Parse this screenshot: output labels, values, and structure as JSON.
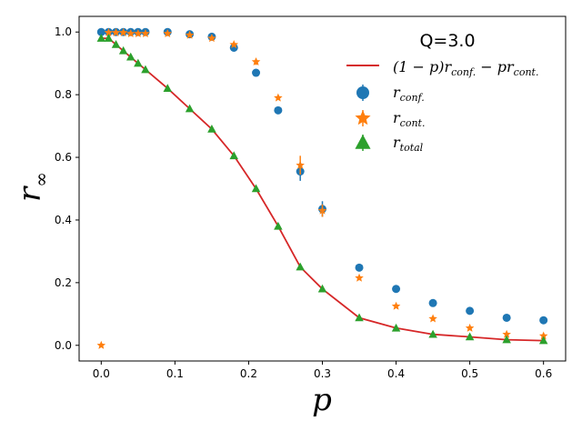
{
  "chart_data": {
    "type": "scatter",
    "title": "Q=3.0",
    "xlabel": "p",
    "ylabel": "r",
    "ylabel_sub": "∞",
    "xlim": [
      -0.03,
      0.63
    ],
    "ylim": [
      -0.05,
      1.05
    ],
    "xticks": [
      0.0,
      0.1,
      0.2,
      0.3,
      0.4,
      0.5,
      0.6
    ],
    "yticks": [
      0.0,
      0.2,
      0.4,
      0.6,
      0.8,
      1.0
    ],
    "xtick_labels": [
      "0.0",
      "0.1",
      "0.2",
      "0.3",
      "0.4",
      "0.5",
      "0.6"
    ],
    "ytick_labels": [
      "0.0",
      "0.2",
      "0.4",
      "0.6",
      "0.8",
      "1.0"
    ],
    "legend_placement": "top-right",
    "series": [
      {
        "name": "r_conf.",
        "legend_main": "r",
        "legend_sub": "conf.",
        "marker": "circle",
        "color": "#1f77b4",
        "x": [
          0.0,
          0.01,
          0.02,
          0.03,
          0.04,
          0.05,
          0.06,
          0.09,
          0.12,
          0.15,
          0.18,
          0.21,
          0.24,
          0.27,
          0.3,
          0.35,
          0.4,
          0.45,
          0.5,
          0.55,
          0.6
        ],
        "y": [
          1.0,
          1.0,
          1.0,
          1.0,
          1.0,
          1.0,
          1.0,
          1.0,
          0.993,
          0.985,
          0.95,
          0.87,
          0.75,
          0.555,
          0.435,
          0.248,
          0.18,
          0.135,
          0.11,
          0.088,
          0.08
        ]
      },
      {
        "name": "r_cont.",
        "legend_main": "r",
        "legend_sub": "cont.",
        "marker": "star",
        "color": "#ff7f0e",
        "x": [
          0.0,
          0.01,
          0.02,
          0.03,
          0.04,
          0.05,
          0.06,
          0.09,
          0.12,
          0.15,
          0.18,
          0.21,
          0.24,
          0.27,
          0.3,
          0.35,
          0.4,
          0.45,
          0.5,
          0.55,
          0.6
        ],
        "y": [
          0.0,
          0.998,
          0.998,
          0.998,
          0.995,
          0.995,
          0.995,
          0.995,
          0.99,
          0.98,
          0.96,
          0.905,
          0.79,
          0.575,
          0.43,
          0.215,
          0.125,
          0.085,
          0.055,
          0.035,
          0.03
        ]
      },
      {
        "name": "r_total",
        "legend_main": "r",
        "legend_sub": "total",
        "marker": "triangle",
        "color": "#2ca02c",
        "x": [
          0.0,
          0.01,
          0.02,
          0.03,
          0.04,
          0.05,
          0.06,
          0.09,
          0.12,
          0.15,
          0.18,
          0.21,
          0.24,
          0.27,
          0.3,
          0.35,
          0.4,
          0.45,
          0.5,
          0.55,
          0.6
        ],
        "y": [
          0.98,
          0.98,
          0.96,
          0.94,
          0.92,
          0.9,
          0.88,
          0.82,
          0.755,
          0.69,
          0.605,
          0.5,
          0.38,
          0.25,
          0.18,
          0.088,
          0.055,
          0.035,
          0.027,
          0.018,
          0.015
        ]
      }
    ],
    "line": {
      "name": "(1-p)r_conf. - p r_cont.",
      "legend_label": "(1 − p)r",
      "legend_mid": " − pr",
      "legend_sub1": "conf.",
      "legend_sub2": "cont.",
      "color": "#d62728",
      "x": [
        0.0,
        0.01,
        0.02,
        0.03,
        0.04,
        0.05,
        0.06,
        0.09,
        0.12,
        0.15,
        0.18,
        0.21,
        0.24,
        0.27,
        0.3,
        0.35,
        0.4,
        0.45,
        0.5,
        0.55,
        0.6
      ],
      "y": [
        0.98,
        0.98,
        0.96,
        0.94,
        0.92,
        0.9,
        0.88,
        0.82,
        0.755,
        0.69,
        0.605,
        0.5,
        0.38,
        0.25,
        0.18,
        0.088,
        0.055,
        0.035,
        0.027,
        0.018,
        0.015
      ]
    }
  }
}
